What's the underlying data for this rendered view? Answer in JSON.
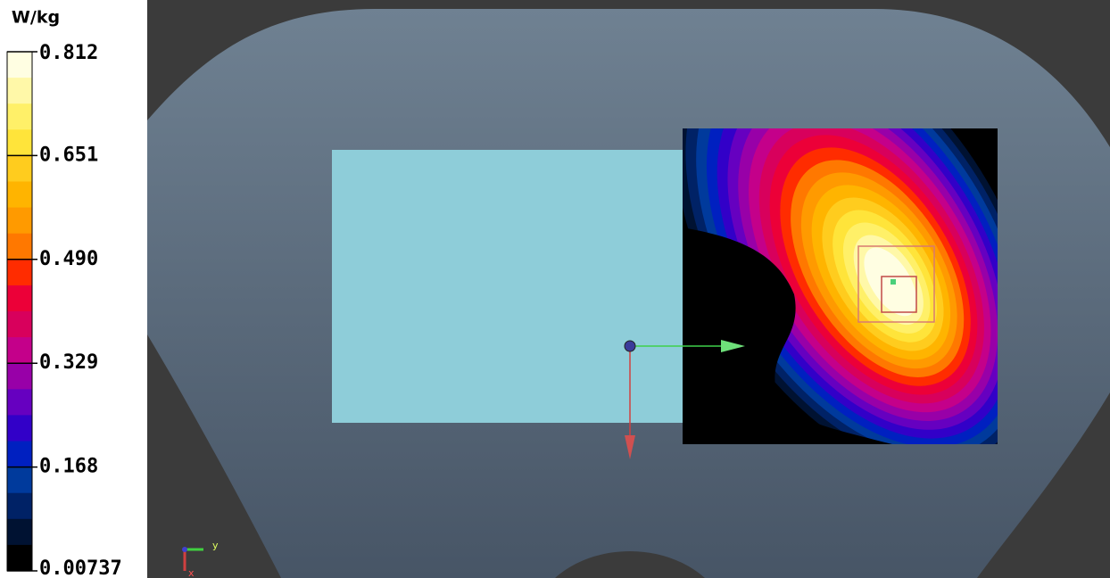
{
  "colorbar": {
    "unit": "W/kg",
    "labels": [
      "0.812",
      "0.651",
      "0.490",
      "0.329",
      "0.168",
      "0.00737"
    ],
    "colors": [
      "#fffee2",
      "#fff8a8",
      "#fff068",
      "#ffe43a",
      "#ffcc1e",
      "#ffb400",
      "#ff9a00",
      "#ff7800",
      "#ff2c00",
      "#ec0038",
      "#d8005c",
      "#c4008a",
      "#9800a8",
      "#6600c0",
      "#3200c8",
      "#0020c0",
      "#003a9c",
      "#002266",
      "#001232",
      "#000000"
    ]
  },
  "axes": {
    "y": "y",
    "x": "x"
  }
}
